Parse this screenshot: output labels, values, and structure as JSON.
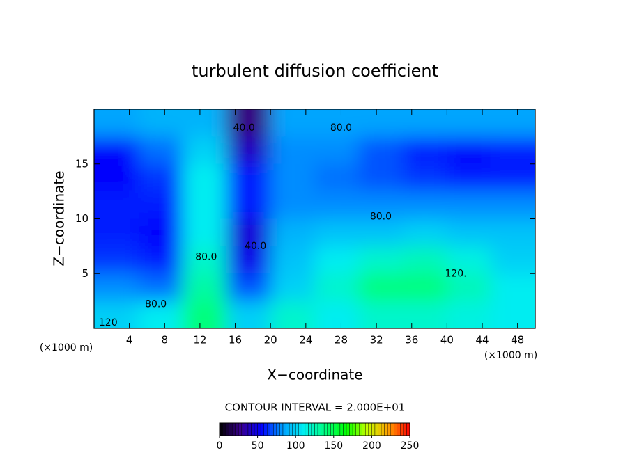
{
  "chart_data": {
    "type": "contour",
    "title": "turbulent diffusion coefficient",
    "x_label": "X−coordinate",
    "y_label": "Z−coordinate",
    "x_unit": "(×1000 m)",
    "x_unit_right": "(×1000 m)",
    "note": "CONTOUR INTERVAL = 2.000E+01",
    "xlim": [
      0,
      50
    ],
    "ylim": [
      0,
      20
    ],
    "xticks": [
      4,
      8,
      12,
      16,
      20,
      24,
      28,
      32,
      36,
      40,
      44,
      48
    ],
    "yticks": [
      5,
      10,
      15
    ],
    "x": [
      2.5,
      7.5,
      12.5,
      17.5,
      22.5,
      27.5,
      32.5,
      37.5,
      42.5,
      47.5
    ],
    "y": [
      1.25,
      3.75,
      6.25,
      8.75,
      11.25,
      13.75,
      16.25,
      18.75
    ],
    "z": [
      [
        100,
        110,
        140,
        100,
        120,
        110,
        120,
        120,
        115,
        110
      ],
      [
        80,
        75,
        130,
        70,
        100,
        120,
        140,
        140,
        125,
        110
      ],
      [
        65,
        60,
        120,
        50,
        95,
        110,
        120,
        125,
        115,
        100
      ],
      [
        60,
        55,
        110,
        45,
        90,
        95,
        95,
        100,
        95,
        95
      ],
      [
        60,
        60,
        110,
        60,
        80,
        80,
        80,
        80,
        80,
        80
      ],
      [
        55,
        65,
        110,
        60,
        80,
        75,
        70,
        65,
        60,
        60
      ],
      [
        55,
        75,
        100,
        40,
        80,
        80,
        70,
        60,
        55,
        60
      ],
      [
        85,
        90,
        90,
        25,
        85,
        85,
        85,
        85,
        85,
        85
      ]
    ],
    "contour_labels": [
      {
        "value": 40,
        "label": "40.0",
        "x": 17,
        "y": 18.3
      },
      {
        "value": 80,
        "label": "80.0",
        "x": 28,
        "y": 18.3
      },
      {
        "value": 80,
        "label": "80.0",
        "x": 32.5,
        "y": 10.2
      },
      {
        "value": 40,
        "label": "40.0",
        "x": 18.3,
        "y": 7.5
      },
      {
        "value": 80,
        "label": "80.0",
        "x": 12.7,
        "y": 6.5
      },
      {
        "value": 120,
        "label": "120.",
        "x": 41,
        "y": 5
      },
      {
        "value": 80,
        "label": "80.0",
        "x": 7,
        "y": 2.2
      },
      {
        "value": 120,
        "label": "120",
        "x": 1.6,
        "y": 0.5
      }
    ],
    "clim": [
      0,
      250
    ],
    "cticks": [
      0,
      50,
      100,
      150,
      200,
      250
    ],
    "colormap": [
      "#000000",
      "#3a0090",
      "#0000ff",
      "#00a0ff",
      "#00f0f0",
      "#00ff80",
      "#00ff00",
      "#c8ff00",
      "#ffa000",
      "#ff0000"
    ]
  }
}
